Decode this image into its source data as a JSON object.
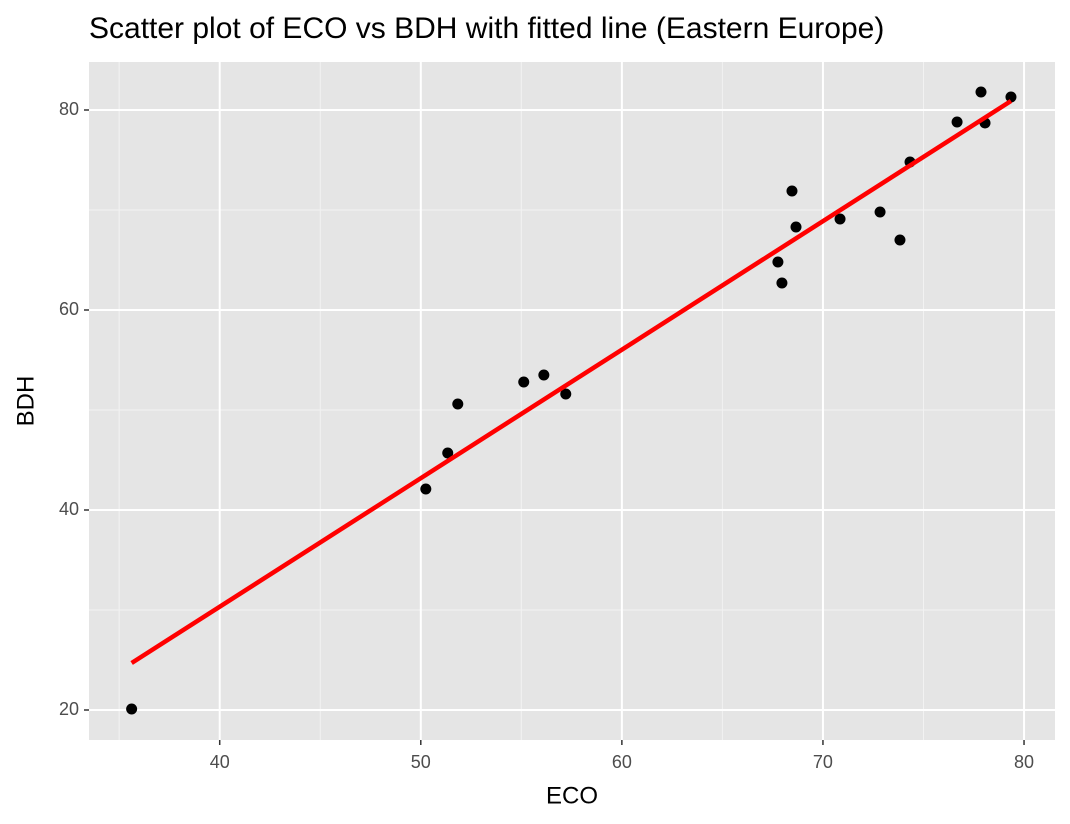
{
  "chart_data": {
    "type": "scatter",
    "title": "Scatter plot of ECO vs BDH with fitted line (Eastern Europe)",
    "x_label": "ECO",
    "y_label": "BDH",
    "x": [
      35.62,
      50.25,
      51.34,
      51.84,
      55.12,
      56.12,
      57.21,
      67.76,
      67.96,
      68.46,
      68.66,
      70.85,
      72.84,
      73.83,
      74.33,
      76.67,
      77.86,
      78.06,
      79.35
    ],
    "values": [
      20.1,
      42.1,
      45.7,
      50.6,
      52.8,
      53.5,
      51.6,
      64.8,
      62.7,
      71.9,
      68.3,
      69.1,
      69.8,
      67.0,
      74.8,
      78.8,
      81.8,
      78.7,
      81.3
    ],
    "color": "#000000",
    "fit": {
      "x": [
        35.62,
        79.35
      ],
      "y": [
        24.7,
        80.9
      ],
      "color": "#ff0000"
    },
    "xlim": [
      33.5,
      81.54
    ],
    "ylim": [
      17,
      84.8
    ],
    "xticks": [
      40,
      50,
      60,
      70,
      80
    ],
    "yticks": [
      20,
      40,
      60,
      80
    ],
    "xminor": [
      35,
      45,
      55,
      65,
      75
    ],
    "yminor": [
      30,
      50,
      70
    ],
    "grid": true
  }
}
